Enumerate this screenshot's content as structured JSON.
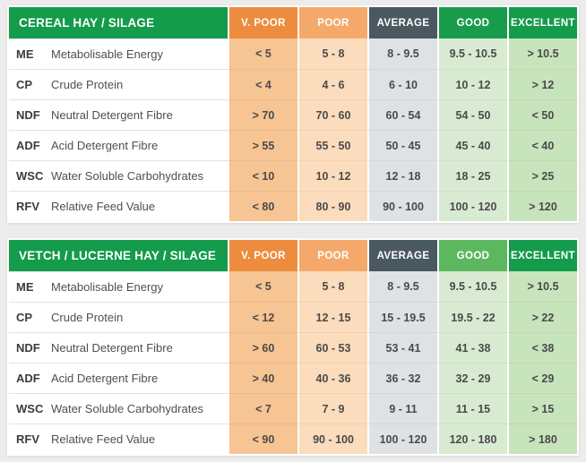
{
  "page": {
    "background": "#ECECEC"
  },
  "colors": {
    "title_bg": "#149B4B",
    "header": {
      "vpoor": "#ED8C3E",
      "poor": "#F4A96B",
      "average": "#4A5860",
      "good_dark": "#189C4B",
      "good_light": "#5CB75E",
      "excellent": "#149B4B"
    },
    "cells": {
      "vpoor": "#F7C493",
      "poor": "#FBDCBC",
      "average": "#DEE2E4",
      "good": "#D8EBD2",
      "excellent": "#C8E4BC"
    },
    "text_dark": "#4A4A4A",
    "text_white": "#FFFFFF"
  },
  "columns": [
    {
      "key": "vpoor",
      "label": "V. POOR"
    },
    {
      "key": "poor",
      "label": "POOR"
    },
    {
      "key": "average",
      "label": "AVERAGE"
    },
    {
      "key": "good",
      "label": "GOOD"
    },
    {
      "key": "excellent",
      "label": "EXCELLENT"
    }
  ],
  "tables": [
    {
      "title": "CEREAL HAY / SILAGE",
      "header_colors": [
        "#ED8C3E",
        "#F4A96B",
        "#4A5860",
        "#189C4B",
        "#149B4B"
      ],
      "rows": [
        {
          "code": "ME",
          "name": "Metabolisable Energy",
          "values": [
            "< 5",
            "5 - 8",
            "8 - 9.5",
            "9.5 - 10.5",
            "> 10.5"
          ]
        },
        {
          "code": "CP",
          "name": "Crude Protein",
          "values": [
            "< 4",
            "4 - 6",
            "6 - 10",
            "10 - 12",
            "> 12"
          ]
        },
        {
          "code": "NDF",
          "name": "Neutral Detergent Fibre",
          "values": [
            "> 70",
            "70 - 60",
            "60 - 54",
            "54 - 50",
            "< 50"
          ]
        },
        {
          "code": "ADF",
          "name": "Acid Detergent Fibre",
          "values": [
            "> 55",
            "55 - 50",
            "50 - 45",
            "45 - 40",
            "< 40"
          ]
        },
        {
          "code": "WSC",
          "name": "Water Soluble Carbohydrates",
          "values": [
            "< 10",
            "10 - 12",
            "12 - 18",
            "18 - 25",
            "> 25"
          ]
        },
        {
          "code": "RFV",
          "name": "Relative Feed Value",
          "values": [
            "< 80",
            "80 - 90",
            "90 - 100",
            "100 - 120",
            "> 120"
          ]
        }
      ]
    },
    {
      "title": "VETCH / LUCERNE HAY / SILAGE",
      "header_colors": [
        "#ED8C3E",
        "#F4A96B",
        "#4A5860",
        "#5CB75E",
        "#149B4B"
      ],
      "rows": [
        {
          "code": "ME",
          "name": "Metabolisable Energy",
          "values": [
            "< 5",
            "5 - 8",
            "8 - 9.5",
            "9.5 - 10.5",
            "> 10.5"
          ]
        },
        {
          "code": "CP",
          "name": "Crude Protein",
          "values": [
            "< 12",
            "12 - 15",
            "15 - 19.5",
            "19.5 - 22",
            "> 22"
          ]
        },
        {
          "code": "NDF",
          "name": "Neutral Detergent Fibre",
          "values": [
            "> 60",
            "60 - 53",
            "53 - 41",
            "41 - 38",
            "< 38"
          ]
        },
        {
          "code": "ADF",
          "name": "Acid Detergent Fibre",
          "values": [
            "> 40",
            "40 - 36",
            "36 - 32",
            "32 - 29",
            "< 29"
          ]
        },
        {
          "code": "WSC",
          "name": "Water Soluble Carbohydrates",
          "values": [
            "< 7",
            "7 - 9",
            "9 - 11",
            "11 - 15",
            "> 15"
          ]
        },
        {
          "code": "RFV",
          "name": "Relative Feed Value",
          "values": [
            "< 90",
            "90 - 100",
            "100 - 120",
            "120 - 180",
            "> 180"
          ]
        }
      ]
    }
  ]
}
